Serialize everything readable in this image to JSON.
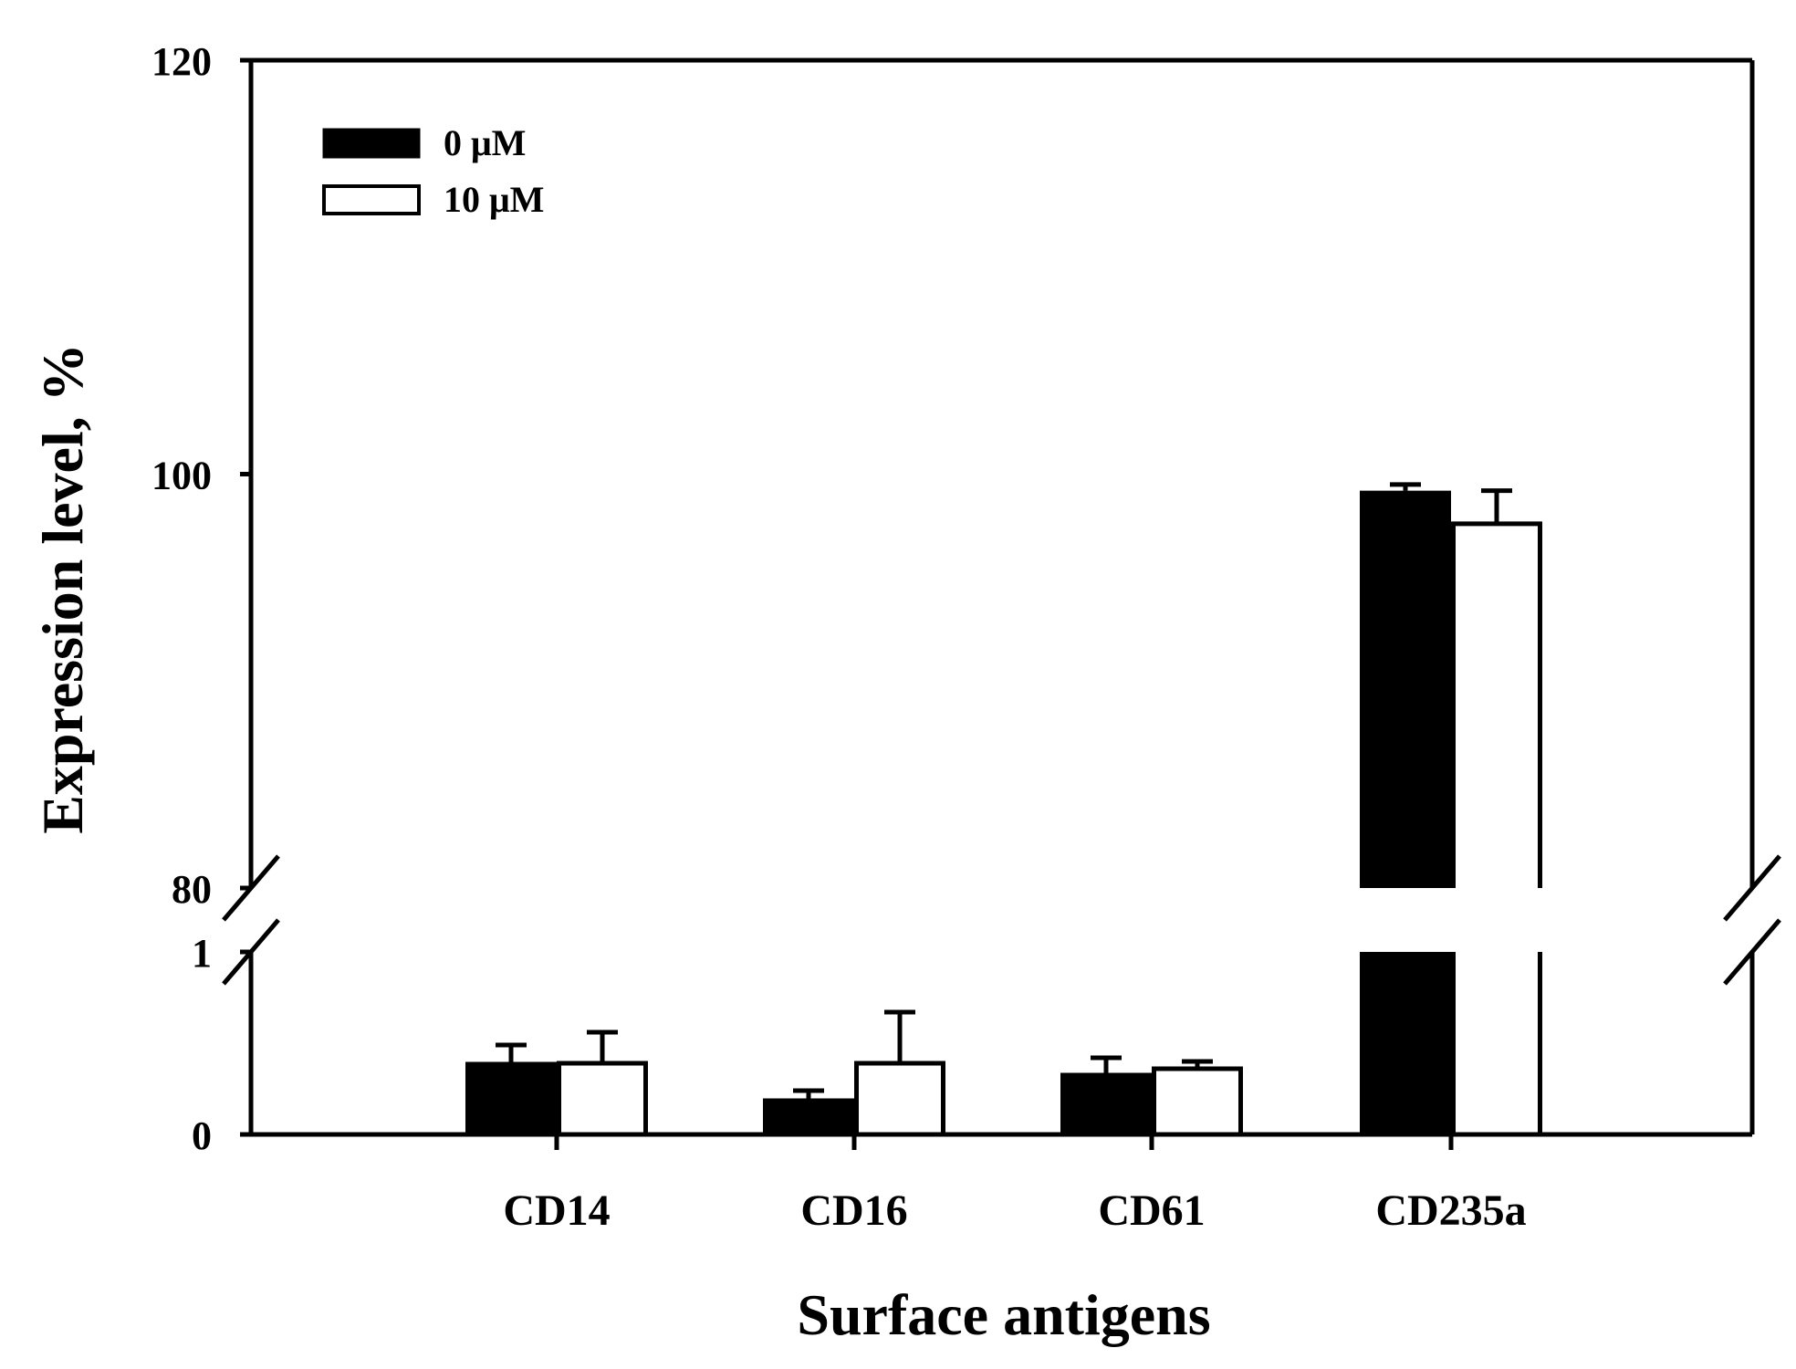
{
  "chart_data": {
    "type": "bar",
    "title": "",
    "xlabel": "Surface antigens",
    "ylabel": "Expression level, %",
    "categories": [
      "CD14",
      "CD16",
      "CD61",
      "CD235a"
    ],
    "series": [
      {
        "name": "0 μM",
        "fill": "#000000",
        "values": [
          0.39,
          0.19,
          0.33,
          99.2
        ],
        "errors": [
          0.1,
          0.05,
          0.09,
          0.3
        ]
      },
      {
        "name": "10 μM",
        "fill": "#ffffff",
        "values": [
          0.39,
          0.39,
          0.36,
          97.6
        ],
        "errors": [
          0.17,
          0.28,
          0.04,
          1.6
        ]
      }
    ],
    "y_axis_broken": true,
    "y_segments": [
      {
        "range": [
          0,
          1
        ],
        "ticks": [
          "0",
          "1"
        ]
      },
      {
        "range": [
          80,
          120
        ],
        "ticks": [
          "80",
          "100",
          "120"
        ]
      }
    ],
    "grid": false,
    "legend_position": "top-left"
  }
}
